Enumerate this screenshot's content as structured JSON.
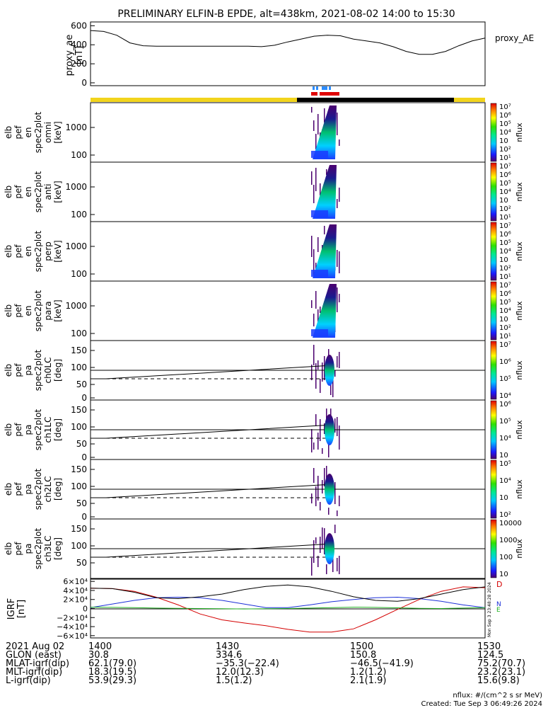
{
  "title": "PRELIMINARY ELFIN-B EPDE, alt=438km, 2021-08-02 14:00 to 15:30",
  "proxy_ae": {
    "ylabel": [
      "proxy_ae",
      "[nT]"
    ],
    "legend": "proxy_AE",
    "yticks": [
      "600",
      "400",
      "200",
      "0"
    ],
    "ylim": [
      -30,
      640
    ]
  },
  "spec_panels": [
    {
      "ylabel": [
        "elb",
        "pef",
        "en",
        "spec2plot",
        "omni",
        "[keV]"
      ],
      "yticks": [
        "1000",
        "100"
      ],
      "cbar_ticks": [
        "10⁷",
        "10⁶",
        "10⁵",
        "10⁴",
        "10⁳",
        "10²",
        "10¹"
      ],
      "cbar_label": "nflux"
    },
    {
      "ylabel": [
        "elb",
        "pef",
        "en",
        "spec2plot",
        "anti",
        "[keV]"
      ],
      "yticks": [
        "1000",
        "100"
      ],
      "cbar_ticks": [
        "10⁷",
        "10⁶",
        "10⁵",
        "10⁴",
        "10⁳",
        "10²",
        "10¹"
      ],
      "cbar_label": "nflux"
    },
    {
      "ylabel": [
        "elb",
        "pef",
        "en",
        "spec2plot",
        "perp",
        "[keV]"
      ],
      "yticks": [
        "1000",
        "100"
      ],
      "cbar_ticks": [
        "10⁷",
        "10⁶",
        "10⁵",
        "10⁴",
        "10⁳",
        "10²",
        "10¹"
      ],
      "cbar_label": "nflux"
    },
    {
      "ylabel": [
        "elb",
        "pef",
        "en",
        "spec2plot",
        "para",
        "[keV]"
      ],
      "yticks": [
        "1000",
        "100"
      ],
      "cbar_ticks": [
        "10⁷",
        "10⁶",
        "10⁵",
        "10⁴",
        "10⁳",
        "10²",
        "10¹"
      ],
      "cbar_label": "nflux"
    },
    {
      "ylabel": [
        "elb",
        "pef",
        "pa",
        "spec2plot",
        "ch0LC",
        "[deg]"
      ],
      "yticks": [
        "150",
        "100",
        "50",
        "0"
      ],
      "cbar_ticks": [
        "10⁷",
        "10⁶",
        "10⁵",
        "10⁴"
      ],
      "cbar_label": "nflux"
    },
    {
      "ylabel": [
        "elb",
        "pef",
        "pa",
        "spec2plot",
        "ch1LC",
        "[deg]"
      ],
      "yticks": [
        "150",
        "100",
        "50",
        "0"
      ],
      "cbar_ticks": [
        "10⁶",
        "10⁵",
        "10⁴",
        "10⁳"
      ],
      "cbar_label": "nflux"
    },
    {
      "ylabel": [
        "elb",
        "pef",
        "pa",
        "spec2plot",
        "ch2LC",
        "[deg]"
      ],
      "yticks": [
        "150",
        "100",
        "50",
        "0"
      ],
      "cbar_ticks": [
        "10⁵",
        "10⁴",
        "10⁳",
        "10²"
      ],
      "cbar_label": "nflux"
    },
    {
      "ylabel": [
        "elb",
        "pef",
        "pa",
        "spec2plot",
        "ch3LC",
        "[deg]"
      ],
      "yticks": [
        "150",
        "100",
        "50"
      ],
      "cbar_ticks": [
        "10000",
        "1000",
        "100",
        "10"
      ],
      "cbar_label": "nflux"
    }
  ],
  "igrf": {
    "ylabel": [
      "IGRF",
      "[nT]"
    ],
    "yticks": [
      "6×10⁴",
      "4×10⁴",
      "2×10⁴",
      "0",
      "−2×10⁴",
      "−4×10⁴",
      "−6×10⁴"
    ],
    "legend_letters": [
      "D",
      "N",
      "E"
    ],
    "side_note": "Mon Sep  3 23:48:28 2024"
  },
  "footer": {
    "rows": [
      [
        "2021 Aug 02",
        "1400",
        "1430",
        "1500",
        "1530"
      ],
      [
        "GLON (east)",
        "30.8",
        "334.6",
        "150.8",
        "124.5"
      ],
      [
        "MLAT-igrf(dip)",
        "62.1(79.0)",
        "−35.3(−22.4)",
        "−46.5(−41.9)",
        "75.2(70.7)"
      ],
      [
        "MLT-igrf(dip)",
        "18.3(19.5)",
        "12.0(12.3)",
        "1.2(1.2)",
        "23.2(23.1)"
      ],
      [
        "L-igrf(dip)",
        "53.9(29.3)",
        "1.5(1.2)",
        "2.1(1.9)",
        "15.6(9.8)"
      ]
    ],
    "units_note": "nflux: #/(cm^2 s sr MeV)",
    "created_note": "Created: Tue Sep  3 06:49:26 2024"
  },
  "colors": {
    "proxy_line": "#000000",
    "ephem_yellow": "#f2d41c",
    "ephem_black": "#000000",
    "science_red": "#e00000",
    "science_blue": "#2a8cff",
    "igrf_black": "#000000",
    "igrf_red": "#d40000",
    "igrf_blue": "#1c2fd8",
    "igrf_green": "#22b022"
  },
  "chart_data": [
    {
      "type": "line",
      "title": "PRELIMINARY ELFIN-B EPDE, alt=438km, 2021-08-02 14:00 to 15:30",
      "xlabel": "",
      "ylabel": "proxy_ae [nT]",
      "x": [
        "14:00",
        "14:03",
        "14:06",
        "14:09",
        "14:12",
        "14:15",
        "14:18",
        "14:21",
        "14:24",
        "14:27",
        "14:30",
        "14:33",
        "14:36",
        "14:39",
        "14:42",
        "14:45",
        "14:48",
        "14:51",
        "14:54",
        "14:57",
        "15:00",
        "15:03",
        "15:06",
        "15:09",
        "15:12",
        "15:15",
        "15:18",
        "15:21",
        "15:24",
        "15:27",
        "15:30"
      ],
      "series": [
        {
          "name": "proxy_AE",
          "values": [
            550,
            540,
            500,
            420,
            390,
            385,
            385,
            385,
            385,
            385,
            385,
            385,
            385,
            380,
            395,
            430,
            460,
            490,
            500,
            495,
            460,
            440,
            420,
            380,
            330,
            300,
            300,
            330,
            390,
            440,
            470
          ]
        }
      ],
      "ylim": [
        -30,
        640
      ],
      "grid": false,
      "legend": "right"
    },
    {
      "type": "line",
      "title": "",
      "xlabel": "",
      "ylabel": "IGRF [nT]",
      "x": [
        "14:00",
        "14:05",
        "14:10",
        "14:15",
        "14:20",
        "14:25",
        "14:30",
        "14:35",
        "14:40",
        "14:45",
        "14:50",
        "14:55",
        "15:00",
        "15:05",
        "15:10",
        "15:15",
        "15:20",
        "15:25",
        "15:30"
      ],
      "series": [
        {
          "name": "D",
          "values": [
            45000,
            44000,
            38000,
            25000,
            8000,
            -12000,
            -25000,
            -32000,
            -38000,
            -46000,
            -52000,
            -52000,
            -45000,
            -25000,
            -2000,
            20000,
            38000,
            48000,
            46000
          ]
        },
        {
          "name": "N",
          "values": [
            2000,
            10000,
            18000,
            24000,
            25000,
            24000,
            18000,
            10000,
            2000,
            2000,
            8000,
            15000,
            20000,
            24000,
            25000,
            22000,
            16000,
            8000,
            2000
          ]
        },
        {
          "name": "E",
          "values": [
            45000,
            44000,
            36000,
            24000,
            22000,
            26000,
            32000,
            42000,
            49000,
            52000,
            48000,
            38000,
            26000,
            18000,
            16000,
            22000,
            32000,
            42000,
            48000
          ]
        },
        {
          "name": "",
          "values": [
            3000,
            2500,
            2000,
            1000,
            500,
            0,
            -500,
            -1000,
            -500,
            0,
            1000,
            2000,
            3000,
            2500,
            1500,
            500,
            0,
            1000,
            2000
          ]
        }
      ],
      "ylim": [
        -65000,
        65000
      ],
      "grid": false
    }
  ]
}
